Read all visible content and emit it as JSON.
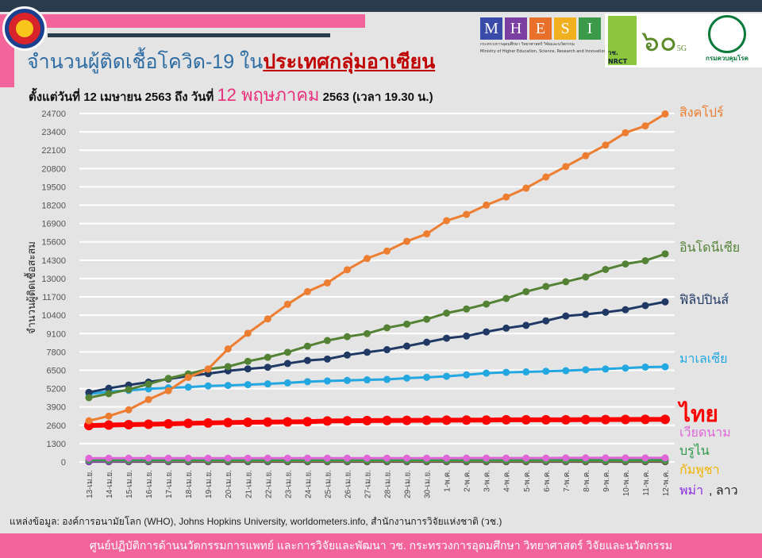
{
  "header": {
    "title_part1": "จำนวนผู้ติดเชื้อโควิด-19 ใน",
    "title_part2": "ประเทศกลุ่มอาเซียน",
    "subtitle_part1": "ตั้งแต่วันที่ 12 เมษายน 2563 ถึง วันที่ ",
    "subtitle_highlight": "12 พฤษภาคม",
    "subtitle_part2": " 2563 (เวลา 19.30 น.)",
    "mhesi_letters": [
      "M",
      "H",
      "E",
      "S",
      "I"
    ],
    "mhesi_colors": [
      "#3a4aa8",
      "#7a3fa0",
      "#e8702a",
      "#f0b020",
      "#3a9a4a"
    ],
    "mhesi_caption": "กระทรวงการอุดมศึกษา วิทยาศาสตร์ วิจัยและนวัตกรรม",
    "mhesi_caption_en": "Ministry of Higher Education, Science, Research and Innovation",
    "nrct": "วช. NRCT",
    "anniv": "๖๐",
    "anniv_5g": "5G",
    "moph": "กรมควบคุมโรค"
  },
  "chart_data": {
    "type": "line",
    "ylabel": "จำนวนผู้ติดเชื้อสะสม",
    "ylim": [
      0,
      24700
    ],
    "yticks": [
      0,
      1300,
      2600,
      3900,
      5200,
      6500,
      7800,
      9100,
      10400,
      11700,
      13000,
      14300,
      15600,
      16900,
      18200,
      19500,
      20800,
      22100,
      23400,
      24700
    ],
    "grid": true,
    "legend_placement": "right",
    "categories": [
      "13-เม.ย.",
      "14-เม.ย.",
      "15-เม.ย.",
      "16-เม.ย.",
      "17-เม.ย.",
      "18-เม.ย.",
      "19-เม.ย.",
      "20-เม.ย.",
      "21-เม.ย.",
      "22-เม.ย.",
      "23-เม.ย.",
      "24-เม.ย.",
      "25-เม.ย.",
      "26-เม.ย.",
      "27-เม.ย.",
      "28-เม.ย.",
      "29-เม.ย.",
      "30-เม.ย.",
      "1-พ.ค.",
      "2-พ.ค.",
      "3-พ.ค.",
      "4-พ.ค.",
      "5-พ.ค.",
      "6-พ.ค.",
      "7-พ.ค.",
      "8-พ.ค.",
      "9-พ.ค.",
      "10-พ.ค.",
      "11-พ.ค.",
      "12-พ.ค."
    ],
    "series": [
      {
        "name": "สิงคโปร์",
        "color": "#ed7d31",
        "values": [
          2918,
          3252,
          3699,
          4427,
          5050,
          5992,
          6588,
          8014,
          9125,
          10141,
          11178,
          12075,
          12693,
          13624,
          14423,
          14951,
          15641,
          16169,
          17101,
          17548,
          18205,
          18778,
          19410,
          20198,
          20939,
          21707,
          22460,
          23336,
          23822,
          24671
        ]
      },
      {
        "name": "อินโดนีเซีย",
        "color": "#548235",
        "values": [
          4557,
          4839,
          5136,
          5516,
          5923,
          6248,
          6575,
          6760,
          7135,
          7418,
          7775,
          8211,
          8607,
          8882,
          9096,
          9511,
          9771,
          10118,
          10551,
          10843,
          11192,
          11587,
          12071,
          12438,
          12776,
          13112,
          13645,
          14032,
          14265,
          14749
        ]
      },
      {
        "name": "ฟิลิปปินส์",
        "color": "#1f3864",
        "values": [
          4932,
          5223,
          5453,
          5660,
          5878,
          6087,
          6259,
          6459,
          6599,
          6710,
          6981,
          7192,
          7294,
          7579,
          7777,
          7958,
          8212,
          8488,
          8772,
          8928,
          9223,
          9485,
          9684,
          10004,
          10343,
          10463,
          10610,
          10794,
          11086,
          11350
        ]
      },
      {
        "name": "มาเลเซีย",
        "color": "#22a7e0",
        "values": [
          4817,
          4987,
          5072,
          5182,
          5251,
          5305,
          5389,
          5425,
          5482,
          5532,
          5603,
          5691,
          5742,
          5780,
          5820,
          5851,
          5945,
          6002,
          6071,
          6176,
          6298,
          6353,
          6383,
          6428,
          6467,
          6535,
          6589,
          6656,
          6726,
          6742
        ]
      },
      {
        "name": "ไทย",
        "color": "#ff0000",
        "values": [
          2579,
          2613,
          2643,
          2672,
          2700,
          2733,
          2765,
          2792,
          2811,
          2826,
          2839,
          2854,
          2907,
          2922,
          2931,
          2938,
          2947,
          2954,
          2960,
          2966,
          2969,
          2987,
          2988,
          2989,
          2992,
          3000,
          3004,
          3009,
          3015,
          3017
        ]
      },
      {
        "name": "เวียดนาม",
        "color": "#e066d8",
        "values": [
          262,
          265,
          267,
          268,
          268,
          268,
          268,
          268,
          268,
          268,
          268,
          268,
          270,
          270,
          270,
          270,
          270,
          270,
          270,
          271,
          271,
          271,
          271,
          271,
          288,
          288,
          288,
          288,
          288,
          288
        ]
      },
      {
        "name": "บรูไน",
        "color": "#2e9a4a",
        "values": [
          136,
          136,
          136,
          137,
          138,
          138,
          138,
          138,
          138,
          138,
          138,
          138,
          138,
          138,
          138,
          138,
          138,
          138,
          138,
          138,
          138,
          141,
          141,
          141,
          141,
          141,
          141,
          141,
          141,
          141
        ]
      },
      {
        "name": "กัมพูชา",
        "color": "#f0b400",
        "values": [
          122,
          122,
          122,
          122,
          122,
          122,
          122,
          122,
          122,
          122,
          122,
          122,
          122,
          122,
          122,
          122,
          122,
          122,
          122,
          122,
          122,
          122,
          122,
          122,
          122,
          122,
          122,
          122,
          122,
          122
        ]
      },
      {
        "name": "พม่า",
        "color": "#8a2be2",
        "values": [
          41,
          62,
          74,
          85,
          88,
          98,
          107,
          111,
          119,
          121,
          139,
          144,
          146,
          146,
          150,
          150,
          151,
          151,
          155,
          155,
          161,
          161,
          161,
          171,
          176,
          177,
          178,
          178,
          180,
          180
        ]
      },
      {
        "name": "ลาว",
        "color": "#555555",
        "values": [
          19,
          19,
          19,
          19,
          19,
          19,
          19,
          19,
          19,
          19,
          19,
          19,
          19,
          19,
          19,
          19,
          19,
          19,
          19,
          19,
          19,
          19,
          19,
          19,
          19,
          19,
          19,
          19,
          19,
          19
        ]
      }
    ],
    "end_labels": [
      {
        "text": "สิงคโปร์",
        "color": "#ed7d31"
      },
      {
        "text": "อินโดนีเซีย",
        "color": "#548235"
      },
      {
        "text": "ฟิลิปปินส์",
        "color": "#1f3864"
      },
      {
        "text": "มาเลเซีย",
        "color": "#22a7e0"
      },
      {
        "text": "ไทย",
        "color": "#ff0000"
      },
      {
        "text": "เวียดนาม",
        "color": "#e066d8"
      },
      {
        "text": "บรูไน",
        "color": "#2e9a4a"
      },
      {
        "text": "กัมพูชา",
        "color": "#f0b400"
      },
      {
        "text": "พม่า",
        "color": "#8a2be2"
      },
      {
        "text": ", ลาว",
        "color": "#222222"
      }
    ]
  },
  "source": "แหล่งข้อมูล: องค์การอนามัยโลก (WHO), Johns Hopkins University, worldometers.info, สำนักงานการวิจัยแห่งชาติ (วช.)",
  "footer": "ศูนย์ปฏิบัติการด้านนวัตกรรมการแพทย์ และการวิจัยและพัฒนา วช.   กระทรวงการอุดมศึกษา วิทยาศาสตร์ วิจัยและนวัตกรรม"
}
